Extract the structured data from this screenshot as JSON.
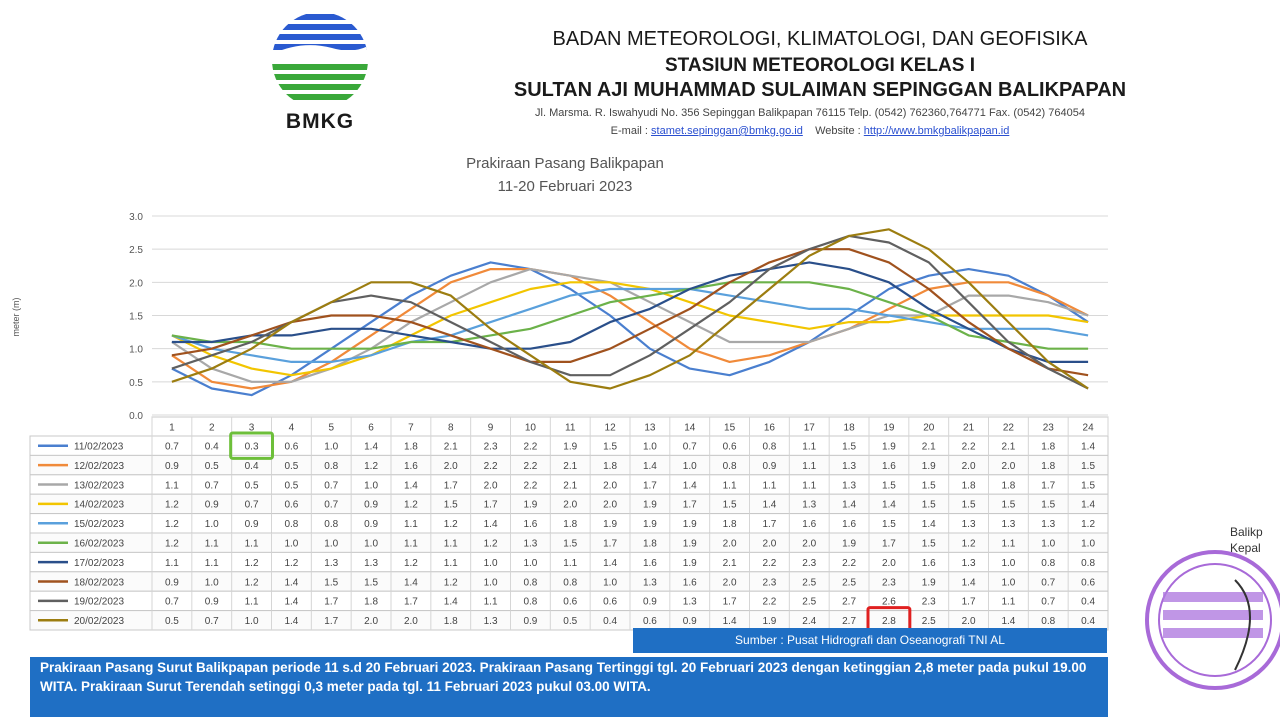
{
  "header": {
    "org": "BADAN METEOROLOGI, KLIMATOLOGI, DAN GEOFISIKA",
    "station_line1": "STASIUN METEOROLOGI KELAS I",
    "station_line2": "SULTAN AJI MUHAMMAD SULAIMAN SEPINGGAN BALIKPAPAN",
    "address": "Jl. Marsma. R. Iswahyudi No. 356 Sepinggan Balikpapan 76115  Telp. (0542) 762360,764771 Fax. (0542) 764054",
    "email_label": "E-mail :",
    "email": "stamet.sepinggan@bmkg.go.id",
    "website_label": "Website :",
    "website": "http://www.bmkgbalikpapan.id"
  },
  "logo": {
    "text": "BMKG"
  },
  "colors": {
    "source_bar": "#1f6fc4",
    "note_bar": "#1f6fc4",
    "highlight_low": "#6dbf3a",
    "highlight_high": "#e02020"
  },
  "chart_data": {
    "type": "line",
    "title": "Prakiraan Pasang Balikpapan",
    "subtitle": "11-20 Februari 2023",
    "ylabel": "meter (m)",
    "xlabel": "",
    "ylim": [
      0,
      3
    ],
    "yticks": [
      "0.0",
      "0.5",
      "1.0",
      "1.5",
      "2.0",
      "2.5",
      "3.0"
    ],
    "grid": true,
    "legend": "table-left",
    "categories": [
      "1",
      "2",
      "3",
      "4",
      "5",
      "6",
      "7",
      "8",
      "9",
      "10",
      "11",
      "12",
      "13",
      "14",
      "15",
      "16",
      "17",
      "18",
      "19",
      "20",
      "21",
      "22",
      "23",
      "24"
    ],
    "series": [
      {
        "name": "11/02/2023",
        "color": "#4a7fcf",
        "values": [
          0.7,
          0.4,
          0.3,
          0.6,
          1.0,
          1.4,
          1.8,
          2.1,
          2.3,
          2.2,
          1.9,
          1.5,
          1.0,
          0.7,
          0.6,
          0.8,
          1.1,
          1.5,
          1.9,
          2.1,
          2.2,
          2.1,
          1.8,
          1.4
        ]
      },
      {
        "name": "12/02/2023",
        "color": "#f08a3a",
        "values": [
          0.9,
          0.5,
          0.4,
          0.5,
          0.8,
          1.2,
          1.6,
          2.0,
          2.2,
          2.2,
          2.1,
          1.8,
          1.4,
          1.0,
          0.8,
          0.9,
          1.1,
          1.3,
          1.6,
          1.9,
          2.0,
          2.0,
          1.8,
          1.5
        ]
      },
      {
        "name": "13/02/2023",
        "color": "#a8a8a8",
        "values": [
          1.1,
          0.7,
          0.5,
          0.5,
          0.7,
          1.0,
          1.4,
          1.7,
          2.0,
          2.2,
          2.1,
          2.0,
          1.7,
          1.4,
          1.1,
          1.1,
          1.1,
          1.3,
          1.5,
          1.5,
          1.8,
          1.8,
          1.7,
          1.5
        ]
      },
      {
        "name": "14/02/2023",
        "color": "#f2c500",
        "values": [
          1.2,
          0.9,
          0.7,
          0.6,
          0.7,
          0.9,
          1.2,
          1.5,
          1.7,
          1.9,
          2.0,
          2.0,
          1.9,
          1.7,
          1.5,
          1.4,
          1.3,
          1.4,
          1.4,
          1.5,
          1.5,
          1.5,
          1.5,
          1.4
        ]
      },
      {
        "name": "15/02/2023",
        "color": "#5aa0dc",
        "values": [
          1.2,
          1.0,
          0.9,
          0.8,
          0.8,
          0.9,
          1.1,
          1.2,
          1.4,
          1.6,
          1.8,
          1.9,
          1.9,
          1.9,
          1.8,
          1.7,
          1.6,
          1.6,
          1.5,
          1.4,
          1.3,
          1.3,
          1.3,
          1.2
        ]
      },
      {
        "name": "16/02/2023",
        "color": "#6cb24a",
        "values": [
          1.2,
          1.1,
          1.1,
          1.0,
          1.0,
          1.0,
          1.1,
          1.1,
          1.2,
          1.3,
          1.5,
          1.7,
          1.8,
          1.9,
          2.0,
          2.0,
          2.0,
          1.9,
          1.7,
          1.5,
          1.2,
          1.1,
          1.0,
          1.0
        ]
      },
      {
        "name": "17/02/2023",
        "color": "#2a4f8a",
        "values": [
          1.1,
          1.1,
          1.2,
          1.2,
          1.3,
          1.3,
          1.2,
          1.1,
          1.0,
          1.0,
          1.1,
          1.4,
          1.6,
          1.9,
          2.1,
          2.2,
          2.3,
          2.2,
          2.0,
          1.6,
          1.3,
          1.0,
          0.8,
          0.8
        ]
      },
      {
        "name": "18/02/2023",
        "color": "#a0521e",
        "values": [
          0.9,
          1.0,
          1.2,
          1.4,
          1.5,
          1.5,
          1.4,
          1.2,
          1.0,
          0.8,
          0.8,
          1.0,
          1.3,
          1.6,
          2.0,
          2.3,
          2.5,
          2.5,
          2.3,
          1.9,
          1.4,
          1.0,
          0.7,
          0.6
        ]
      },
      {
        "name": "19/02/2023",
        "color": "#606060",
        "values": [
          0.7,
          0.9,
          1.1,
          1.4,
          1.7,
          1.8,
          1.7,
          1.4,
          1.1,
          0.8,
          0.6,
          0.6,
          0.9,
          1.3,
          1.7,
          2.2,
          2.5,
          2.7,
          2.6,
          2.3,
          1.7,
          1.1,
          0.7,
          0.4
        ]
      },
      {
        "name": "20/02/2023",
        "color": "#9c7d10",
        "values": [
          0.5,
          0.7,
          1.0,
          1.4,
          1.7,
          2.0,
          2.0,
          1.8,
          1.3,
          0.9,
          0.5,
          0.4,
          0.6,
          0.9,
          1.4,
          1.9,
          2.4,
          2.7,
          2.8,
          2.5,
          2.0,
          1.4,
          0.8,
          0.4
        ]
      }
    ],
    "highlights": [
      {
        "series": 0,
        "index": 2,
        "type": "min"
      },
      {
        "series": 9,
        "index": 18,
        "type": "max"
      }
    ]
  },
  "source": "Sumber : Pusat Hidrografi dan Oseanografi TNI AL",
  "note": "Prakiraan Pasang Surut Balikpapan periode 11 s.d 20 Februari 2023. Prakiraan Pasang Tertinggi tgl. 20 Februari 2023 dengan ketinggian 2,8 meter pada pukul 19.00 WITA. Prakiraan Surut Terendah setinggi 0,3 meter pada tgl. 11 Februari 2023 pukul 03.00 WITA.",
  "stamp": {
    "text1": "Balikp",
    "text2": "Kepal"
  }
}
